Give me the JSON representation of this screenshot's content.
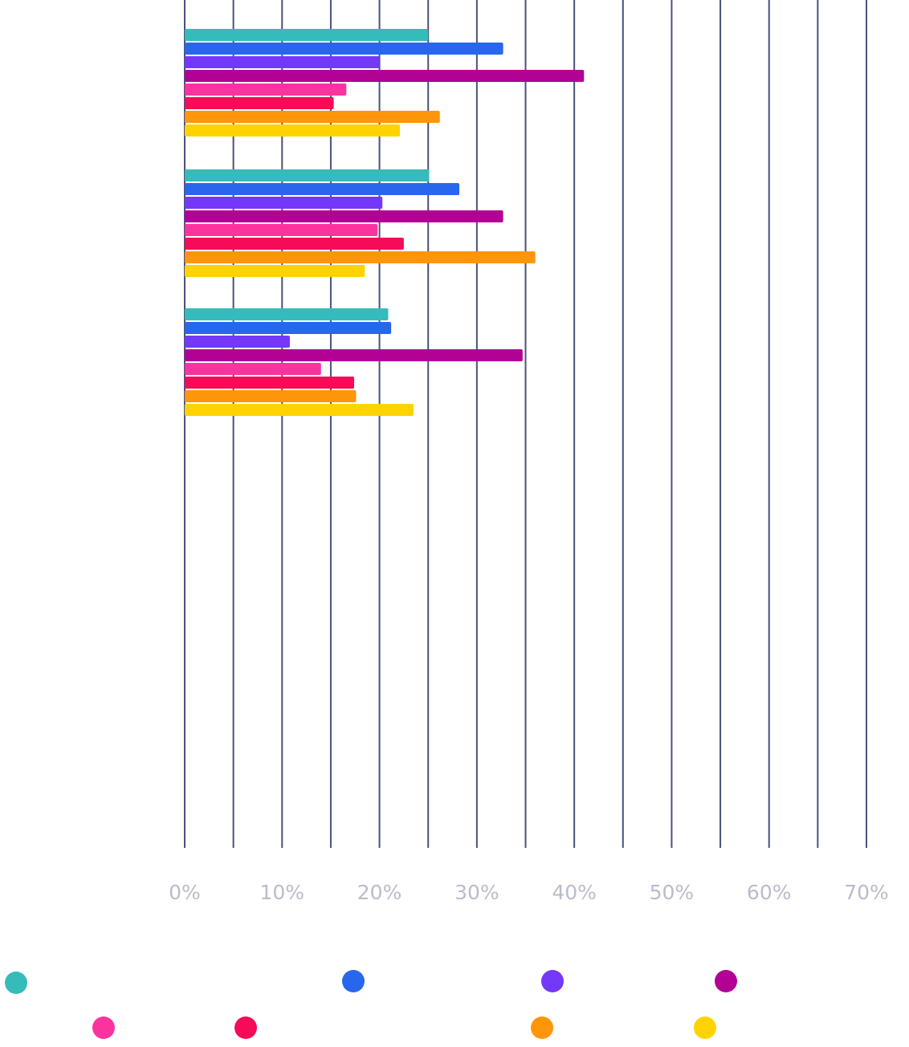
{
  "chart_data": {
    "type": "bar",
    "orientation": "horizontal",
    "xlim": [
      0,
      70
    ],
    "x_tick_labels": [
      "0%",
      "10%",
      "20%",
      "30%",
      "40%",
      "50%",
      "60%",
      "70%"
    ],
    "grid": "vertical lines every 5%",
    "legend_placement": "bottom",
    "groups": 3,
    "series": [
      {
        "color": "#36bbbb",
        "values": [
          25.0,
          25.1,
          20.9
        ]
      },
      {
        "color": "#2966ee",
        "values": [
          32.7,
          28.2,
          21.2
        ]
      },
      {
        "color": "#7438f8",
        "values": [
          20.0,
          20.3,
          10.8
        ]
      },
      {
        "color": "#b10295",
        "values": [
          41.0,
          32.7,
          34.7
        ]
      },
      {
        "color": "#fb339f",
        "values": [
          16.6,
          19.8,
          14.0
        ]
      },
      {
        "color": "#f50b57",
        "values": [
          15.3,
          22.5,
          17.4
        ]
      },
      {
        "color": "#ff9508",
        "values": [
          26.2,
          36.0,
          17.6
        ]
      },
      {
        "color": "#ffd300",
        "values": [
          22.1,
          18.5,
          23.5
        ]
      }
    ]
  }
}
